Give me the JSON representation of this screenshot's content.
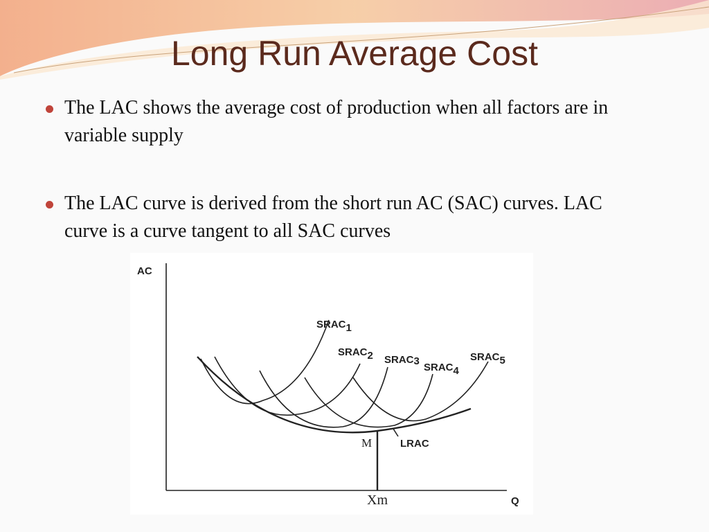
{
  "title": "Long Run Average Cost",
  "bullets": [
    "The LAC shows the average cost of production when all factors are in variable supply",
    "The LAC curve is derived from the short run AC (SAC) curves. LAC curve is a curve tangent to all SAC curves"
  ],
  "diagram": {
    "y_axis_label": "AC",
    "x_axis_label": "Q",
    "curves": [
      {
        "label": "SRAC",
        "subscript": "1"
      },
      {
        "label": "SRAC",
        "subscript": "2"
      },
      {
        "label": "SRAC",
        "subscript": "3"
      },
      {
        "label": "SRAC",
        "subscript": "4"
      },
      {
        "label": "SRAC",
        "subscript": "5"
      }
    ],
    "envelope_label": "LRAC",
    "point_label": "M",
    "x_point_label": "Xm"
  }
}
